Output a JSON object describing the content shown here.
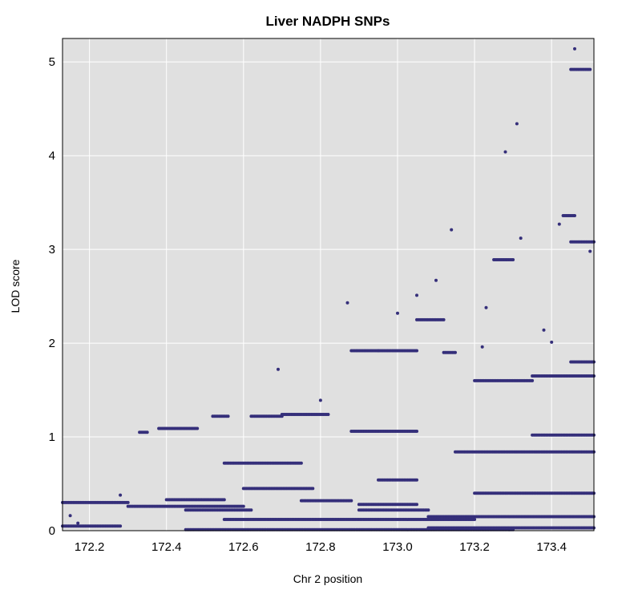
{
  "chart_data": {
    "type": "scatter",
    "title": "Liver NADPH SNPs",
    "xlabel": "Chr 2 position",
    "ylabel": "LOD score",
    "xlim": [
      172.13,
      173.51
    ],
    "ylim": [
      0,
      5.25
    ],
    "x_ticks": [
      172.2,
      172.4,
      172.6,
      172.8,
      173.0,
      173.2,
      173.4
    ],
    "x_tick_labels": [
      "172.2",
      "172.4",
      "172.6",
      "172.8",
      "173.0",
      "173.2",
      "173.4"
    ],
    "y_ticks": [
      0,
      1,
      2,
      3,
      4,
      5
    ],
    "y_tick_labels": [
      "0",
      "1",
      "2",
      "3",
      "4",
      "5"
    ],
    "grid": true,
    "colors": {
      "background": "#e0e0e0",
      "grid": "#ffffff",
      "point": "#352f7a"
    },
    "series": [
      {
        "segments": [
          {
            "x0": 172.13,
            "x1": 172.3,
            "y": 0.3
          },
          {
            "x0": 172.13,
            "x1": 172.28,
            "y": 0.05
          },
          {
            "x0": 172.3,
            "x1": 172.6,
            "y": 0.26
          },
          {
            "x0": 172.4,
            "x1": 172.55,
            "y": 0.33
          },
          {
            "x0": 172.45,
            "x1": 172.62,
            "y": 0.22
          },
          {
            "x0": 172.33,
            "x1": 172.35,
            "y": 1.05
          },
          {
            "x0": 172.38,
            "x1": 172.48,
            "y": 1.09
          },
          {
            "x0": 172.52,
            "x1": 172.56,
            "y": 1.22
          },
          {
            "x0": 172.62,
            "x1": 172.7,
            "y": 1.22
          },
          {
            "x0": 172.7,
            "x1": 172.82,
            "y": 1.24
          },
          {
            "x0": 172.88,
            "x1": 172.95,
            "y": 1.92
          },
          {
            "x0": 172.95,
            "x1": 173.05,
            "y": 1.92
          },
          {
            "x0": 172.88,
            "x1": 173.05,
            "y": 1.06
          },
          {
            "x0": 172.9,
            "x1": 173.05,
            "y": 0.28
          },
          {
            "x0": 172.9,
            "x1": 173.08,
            "y": 0.22
          },
          {
            "x0": 172.95,
            "x1": 173.05,
            "y": 0.54
          },
          {
            "x0": 173.05,
            "x1": 173.12,
            "y": 2.25
          },
          {
            "x0": 173.12,
            "x1": 173.15,
            "y": 1.9
          },
          {
            "x0": 173.25,
            "x1": 173.3,
            "y": 2.89
          },
          {
            "x0": 173.2,
            "x1": 173.35,
            "y": 1.6
          },
          {
            "x0": 173.35,
            "x1": 173.51,
            "y": 1.65
          },
          {
            "x0": 173.15,
            "x1": 173.51,
            "y": 0.84
          },
          {
            "x0": 173.35,
            "x1": 173.51,
            "y": 1.02
          },
          {
            "x0": 173.08,
            "x1": 173.51,
            "y": 0.15
          },
          {
            "x0": 173.08,
            "x1": 173.51,
            "y": 0.03
          },
          {
            "x0": 172.55,
            "x1": 173.2,
            "y": 0.12
          },
          {
            "x0": 173.2,
            "x1": 173.51,
            "y": 0.4
          },
          {
            "x0": 172.55,
            "x1": 172.75,
            "y": 0.72
          },
          {
            "x0": 172.6,
            "x1": 172.78,
            "y": 0.45
          },
          {
            "x0": 172.75,
            "x1": 172.88,
            "y": 0.32
          },
          {
            "x0": 172.45,
            "x1": 173.3,
            "y": 0.01
          },
          {
            "x0": 173.45,
            "x1": 173.51,
            "y": 3.08
          },
          {
            "x0": 173.45,
            "x1": 173.51,
            "y": 1.8
          },
          {
            "x0": 173.45,
            "x1": 173.5,
            "y": 4.92
          },
          {
            "x0": 173.43,
            "x1": 173.46,
            "y": 3.36
          }
        ],
        "points": [
          {
            "x": 173.46,
            "y": 5.14
          },
          {
            "x": 173.31,
            "y": 4.34
          },
          {
            "x": 173.28,
            "y": 4.04
          },
          {
            "x": 173.42,
            "y": 3.27
          },
          {
            "x": 173.14,
            "y": 3.21
          },
          {
            "x": 173.32,
            "y": 3.12
          },
          {
            "x": 173.5,
            "y": 2.98
          },
          {
            "x": 173.1,
            "y": 2.67
          },
          {
            "x": 173.0,
            "y": 2.32
          },
          {
            "x": 172.87,
            "y": 2.43
          },
          {
            "x": 173.05,
            "y": 2.51
          },
          {
            "x": 172.69,
            "y": 1.72
          },
          {
            "x": 172.8,
            "y": 1.39
          },
          {
            "x": 173.23,
            "y": 2.38
          },
          {
            "x": 173.22,
            "y": 1.96
          },
          {
            "x": 173.38,
            "y": 2.14
          },
          {
            "x": 173.4,
            "y": 2.01
          },
          {
            "x": 172.28,
            "y": 0.38
          },
          {
            "x": 172.15,
            "y": 0.16
          },
          {
            "x": 172.17,
            "y": 0.08
          }
        ]
      }
    ]
  }
}
